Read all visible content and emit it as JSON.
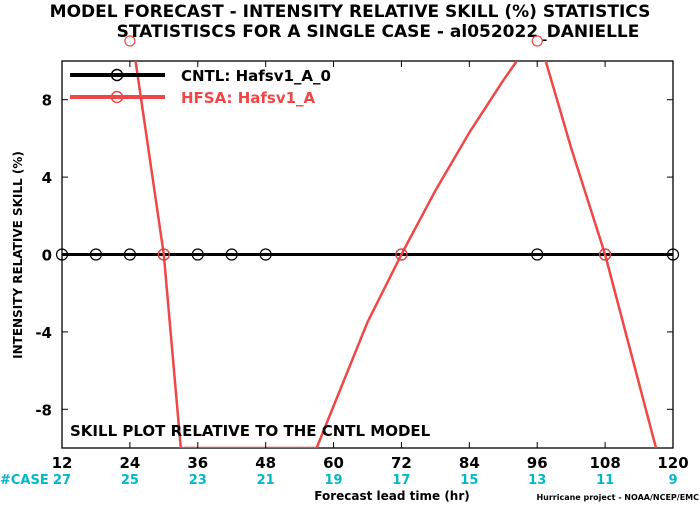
{
  "chart_data": {
    "type": "line",
    "title": "MODEL FORECAST - INTENSITY RELATIVE SKILL (%) STATISTICS",
    "subtitle": "STATISTISCS FOR A SINGLE CASE - al052022_DANIELLE",
    "xlabel": "Forecast lead time (hr)",
    "ylabel": "INTENSITY RELATIVE SKILL (%)",
    "xlim": [
      12,
      120
    ],
    "ylim": [
      -10,
      10
    ],
    "x_ticks": [
      "12",
      "24",
      "36",
      "48",
      "60",
      "72",
      "84",
      "96",
      "108",
      "120"
    ],
    "y_ticks": [
      "-8",
      "-4",
      "0",
      "4",
      "8"
    ],
    "case_label": "#CASE",
    "case_counts": [
      "27",
      "25",
      "23",
      "21",
      "19",
      "17",
      "15",
      "13",
      "11",
      "9"
    ],
    "annotation": "SKILL PLOT RELATIVE TO THE CNTL MODEL",
    "credit": "Hurricane project - NOAA/NCEP/EMC",
    "legend_position": "top-left",
    "series": [
      {
        "name": "CNTL: Hafsv1_A_0",
        "color": "#000000",
        "x": [
          12,
          18,
          24,
          30,
          36,
          42,
          48,
          72,
          96,
          108,
          120
        ],
        "y": [
          0,
          0,
          0,
          0,
          0,
          0,
          0,
          0,
          0,
          0,
          0
        ]
      },
      {
        "name": "HFSA: Hafsv1_A",
        "color": "#f04646",
        "x": [
          24,
          30,
          33,
          57,
          66,
          72,
          78,
          84,
          90,
          96,
          102,
          108,
          117
        ],
        "y": [
          12,
          0,
          -10,
          -10,
          -3.5,
          0,
          3.3,
          6.3,
          9,
          11.5,
          5.5,
          0,
          -10
        ],
        "offscale_markers_x": [
          24,
          96
        ]
      }
    ]
  }
}
